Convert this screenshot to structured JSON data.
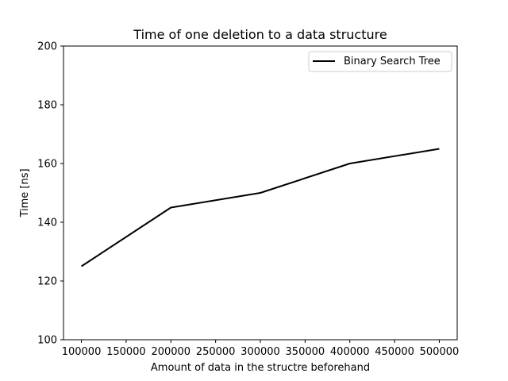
{
  "chart_data": {
    "type": "line",
    "title": "Time of one deletion to a data structure",
    "xlabel": "Amount of data in the structre beforehand",
    "ylabel": "Time [ns]",
    "xlim": [
      80000,
      520000
    ],
    "ylim": [
      100,
      200
    ],
    "xticks": [
      100000,
      150000,
      200000,
      250000,
      300000,
      350000,
      400000,
      450000,
      500000
    ],
    "yticks": [
      100,
      120,
      140,
      160,
      180,
      200
    ],
    "grid": false,
    "legend_position": "top-right",
    "series": [
      {
        "name": "Binary Search Tree",
        "color": "#000000",
        "x": [
          100000,
          200000,
          300000,
          400000,
          500000
        ],
        "y": [
          125,
          145,
          150,
          160,
          165
        ]
      }
    ]
  }
}
